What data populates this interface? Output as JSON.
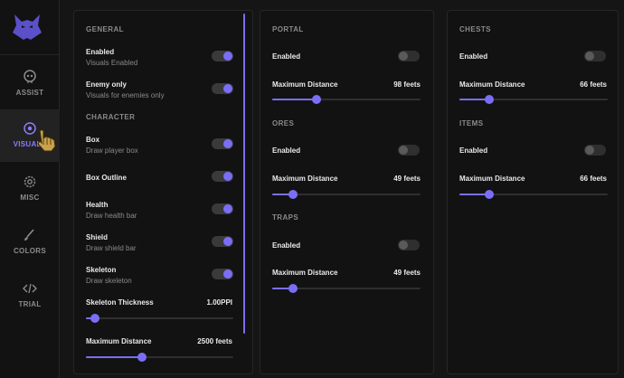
{
  "sidebar": {
    "items": [
      {
        "label": "ASSIST",
        "icon": "skull-icon"
      },
      {
        "label": "VISUALS",
        "icon": "eye-icon",
        "active": true
      },
      {
        "label": "MISC",
        "icon": "gear-icon"
      },
      {
        "label": "COLORS",
        "icon": "brush-icon"
      },
      {
        "label": "TRIAL",
        "icon": "code-icon"
      }
    ]
  },
  "general": {
    "section_general": "GENERAL",
    "enabled": {
      "label": "Enabled",
      "sub": "Visuals Enabled",
      "on": true
    },
    "enemy_only": {
      "label": "Enemy only",
      "sub": "Visuals for enemies only",
      "on": true
    },
    "section_character": "CHARACTER",
    "box": {
      "label": "Box",
      "sub": "Draw player box",
      "on": true
    },
    "box_outline": {
      "label": "Box Outline",
      "on": true
    },
    "health": {
      "label": "Health",
      "sub": "Draw health bar",
      "on": true
    },
    "shield": {
      "label": "Shield",
      "sub": "Draw shield bar",
      "on": true
    },
    "skeleton": {
      "label": "Skeleton",
      "sub": "Draw skeleton",
      "on": true
    },
    "skeleton_thickness": {
      "label": "Skeleton Thickness",
      "value": "1.00PPI",
      "fraction": 0.06
    },
    "max_distance": {
      "label": "Maximum Distance",
      "value": "2500 feets",
      "fraction": 0.38
    }
  },
  "middle": {
    "portal": {
      "section": "PORTAL",
      "enabled_label": "Enabled",
      "on": false,
      "dist_label": "Maximum Distance",
      "dist_value": "98 feets",
      "fraction": 0.3
    },
    "ores": {
      "section": "ORES",
      "enabled_label": "Enabled",
      "on": false,
      "dist_label": "Maximum Distance",
      "dist_value": "49 feets",
      "fraction": 0.14
    },
    "traps": {
      "section": "TRAPS",
      "enabled_label": "Enabled",
      "on": false,
      "dist_label": "Maximum Distance",
      "dist_value": "49 feets",
      "fraction": 0.14
    }
  },
  "right": {
    "chests": {
      "section": "CHESTS",
      "enabled_label": "Enabled",
      "on": false,
      "dist_label": "Maximum Distance",
      "dist_value": "66 feets",
      "fraction": 0.2
    },
    "items": {
      "section": "ITEMS",
      "enabled_label": "Enabled",
      "on": false,
      "dist_label": "Maximum Distance",
      "dist_value": "66 feets",
      "fraction": 0.2
    }
  },
  "colors": {
    "accent": "#7b6ef6",
    "background": "#151515",
    "panel": "#121212"
  }
}
